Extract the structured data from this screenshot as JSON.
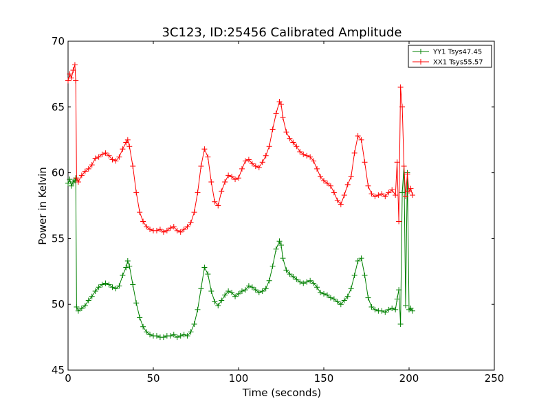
{
  "chart_data": {
    "type": "line",
    "title": "3C123, ID:25456 Calibrated Amplitude",
    "xlabel": "Time (seconds)",
    "ylabel": "Power in Kelvin",
    "xlim": [
      0,
      250
    ],
    "ylim": [
      45,
      70
    ],
    "xticks": [
      "0",
      "50",
      "100",
      "150",
      "200",
      "250"
    ],
    "yticks": [
      "45",
      "50",
      "55",
      "60",
      "65",
      "70"
    ],
    "grid": false,
    "legend_placement": "top-right",
    "series": [
      {
        "name": "YY1 Tsys47.45",
        "color": "#008000",
        "marker": "+",
        "x": [
          0,
          1,
          2,
          3,
          4,
          4.5,
          5,
          6,
          8,
          10,
          12,
          14,
          16,
          18,
          20,
          22,
          24,
          26,
          28,
          30,
          32,
          34,
          35,
          36,
          38,
          40,
          42,
          44,
          46,
          48,
          50,
          52,
          54,
          56,
          58,
          60,
          62,
          64,
          66,
          68,
          70,
          72,
          74,
          76,
          78,
          80,
          82,
          84,
          86,
          88,
          90,
          92,
          94,
          96,
          98,
          100,
          102,
          104,
          106,
          108,
          110,
          112,
          114,
          116,
          118,
          120,
          122,
          124,
          125,
          126,
          128,
          130,
          132,
          134,
          136,
          138,
          140,
          142,
          144,
          146,
          148,
          150,
          152,
          154,
          156,
          158,
          160,
          162,
          164,
          166,
          168,
          170,
          172,
          174,
          176,
          178,
          180,
          182,
          184,
          186,
          188,
          190,
          192,
          193,
          194,
          195,
          196,
          197,
          198,
          199,
          200,
          201,
          202
        ],
        "y": [
          59.2,
          59.5,
          59.0,
          59.3,
          59.4,
          59.6,
          49.8,
          49.5,
          49.7,
          49.9,
          50.3,
          50.6,
          51.0,
          51.3,
          51.5,
          51.6,
          51.5,
          51.3,
          51.2,
          51.4,
          52.2,
          52.8,
          53.3,
          52.9,
          51.5,
          50.1,
          49.0,
          48.3,
          47.9,
          47.7,
          47.6,
          47.6,
          47.5,
          47.5,
          47.6,
          47.6,
          47.7,
          47.5,
          47.6,
          47.7,
          47.6,
          47.9,
          48.5,
          49.6,
          51.2,
          52.8,
          52.3,
          51.0,
          50.2,
          49.9,
          50.3,
          50.7,
          51.0,
          50.9,
          50.6,
          50.8,
          51.0,
          51.1,
          51.4,
          51.3,
          51.1,
          50.9,
          51.0,
          51.2,
          51.8,
          52.9,
          54.2,
          54.8,
          54.5,
          53.5,
          52.6,
          52.3,
          52.1,
          51.9,
          51.7,
          51.6,
          51.7,
          51.8,
          51.6,
          51.3,
          50.9,
          50.8,
          50.7,
          50.5,
          50.4,
          50.2,
          50.0,
          50.3,
          50.6,
          51.2,
          52.2,
          53.3,
          53.5,
          52.2,
          50.5,
          49.8,
          49.6,
          49.5,
          49.5,
          49.4,
          49.6,
          49.7,
          49.6,
          50.4,
          51.1,
          48.5,
          58.5,
          60.5,
          49.9,
          60.0,
          49.6,
          49.7,
          49.5
        ]
      },
      {
        "name": "XX1 Tsys55.57",
        "color": "#ff0000",
        "marker": "+",
        "x": [
          0,
          1,
          2,
          3,
          4,
          4.5,
          5,
          6,
          8,
          10,
          12,
          14,
          16,
          18,
          20,
          22,
          24,
          26,
          28,
          30,
          32,
          34,
          35,
          36,
          38,
          40,
          42,
          44,
          46,
          48,
          50,
          52,
          54,
          56,
          58,
          60,
          62,
          64,
          66,
          68,
          70,
          72,
          74,
          76,
          78,
          80,
          82,
          84,
          86,
          88,
          90,
          92,
          94,
          96,
          98,
          100,
          102,
          104,
          106,
          108,
          110,
          112,
          114,
          116,
          118,
          120,
          122,
          124,
          125,
          126,
          128,
          130,
          132,
          134,
          136,
          138,
          140,
          142,
          144,
          146,
          148,
          150,
          152,
          154,
          156,
          158,
          160,
          162,
          164,
          166,
          168,
          170,
          172,
          174,
          176,
          178,
          180,
          182,
          184,
          186,
          188,
          190,
          192,
          193,
          194,
          195,
          196,
          197,
          198,
          199,
          200,
          201,
          202
        ],
        "y": [
          67.0,
          67.5,
          67.2,
          67.8,
          68.2,
          67.0,
          59.6,
          59.3,
          59.8,
          60.1,
          60.3,
          60.6,
          61.1,
          61.2,
          61.4,
          61.5,
          61.3,
          61.0,
          60.9,
          61.2,
          61.8,
          62.3,
          62.5,
          62.0,
          60.5,
          58.5,
          57.0,
          56.3,
          55.9,
          55.7,
          55.6,
          55.6,
          55.7,
          55.5,
          55.6,
          55.8,
          55.9,
          55.6,
          55.5,
          55.7,
          55.9,
          56.2,
          57.0,
          58.5,
          60.5,
          61.8,
          61.2,
          59.3,
          57.8,
          57.5,
          58.6,
          59.3,
          59.8,
          59.7,
          59.5,
          59.6,
          60.3,
          60.9,
          61.0,
          60.7,
          60.5,
          60.4,
          60.8,
          61.3,
          62.0,
          63.3,
          64.5,
          65.4,
          65.2,
          64.2,
          63.1,
          62.6,
          62.3,
          62.0,
          61.6,
          61.4,
          61.3,
          61.2,
          60.9,
          60.3,
          59.7,
          59.4,
          59.2,
          59.0,
          58.5,
          57.9,
          57.6,
          58.3,
          59.1,
          59.7,
          61.5,
          62.8,
          62.5,
          60.8,
          59.0,
          58.4,
          58.2,
          58.3,
          58.4,
          58.2,
          58.5,
          58.7,
          58.3,
          60.8,
          56.3,
          66.5,
          65.0,
          60.5,
          58.2,
          59.9,
          58.6,
          58.8,
          58.3
        ]
      }
    ]
  }
}
